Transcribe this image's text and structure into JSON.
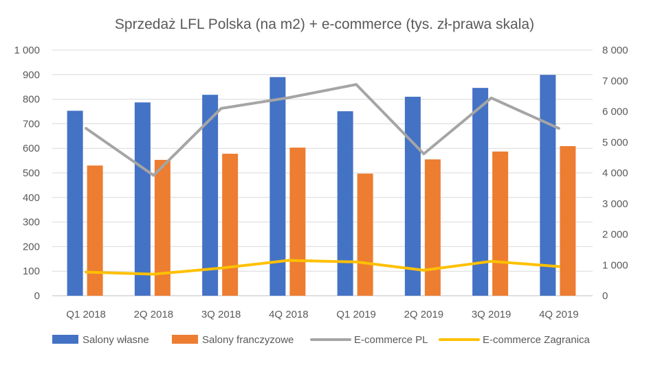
{
  "chart_data": {
    "type": "bar",
    "title": "Sprzedaż LFL Polska (na m2) + e-commerce (tys. zł-prawa skala)",
    "categories": [
      "Q1 2018",
      "2Q 2018",
      "3Q 2018",
      "4Q 2018",
      "Q1 2019",
      "2Q 2019",
      "3Q 2019",
      "4Q 2019"
    ],
    "y_left": {
      "min": 0,
      "max": 1000,
      "step": 100,
      "tick_labels": [
        "0",
        "100",
        "200",
        "300",
        "400",
        "500",
        "600",
        "700",
        "800",
        "900",
        "1 000"
      ]
    },
    "y_right": {
      "min": 0,
      "max": 8000,
      "step": 1000,
      "tick_labels": [
        "0",
        "1 000",
        "2 000",
        "3 000",
        "4 000",
        "5 000",
        "6 000",
        "7 000",
        "8 000"
      ]
    },
    "grid": true,
    "legend_position": "bottom",
    "series": [
      {
        "name": "Salony własne",
        "type": "bar",
        "axis": "left",
        "color": "#4472C4",
        "values": [
          753,
          787,
          818,
          890,
          751,
          810,
          846,
          899
        ]
      },
      {
        "name": "Salony franczyzowe",
        "type": "bar",
        "axis": "left",
        "color": "#ED7D31",
        "values": [
          530,
          553,
          578,
          603,
          497,
          555,
          587,
          609
        ]
      },
      {
        "name": "E-commerce PL",
        "type": "line",
        "axis": "right",
        "color": "#A5A5A5",
        "values": [
          5450,
          3920,
          6100,
          6450,
          6880,
          4620,
          6440,
          5450
        ]
      },
      {
        "name": "E-commerce Zagranica",
        "type": "line",
        "axis": "right",
        "color": "#FFC000",
        "values": [
          770,
          700,
          900,
          1150,
          1100,
          830,
          1120,
          950
        ]
      }
    ]
  }
}
